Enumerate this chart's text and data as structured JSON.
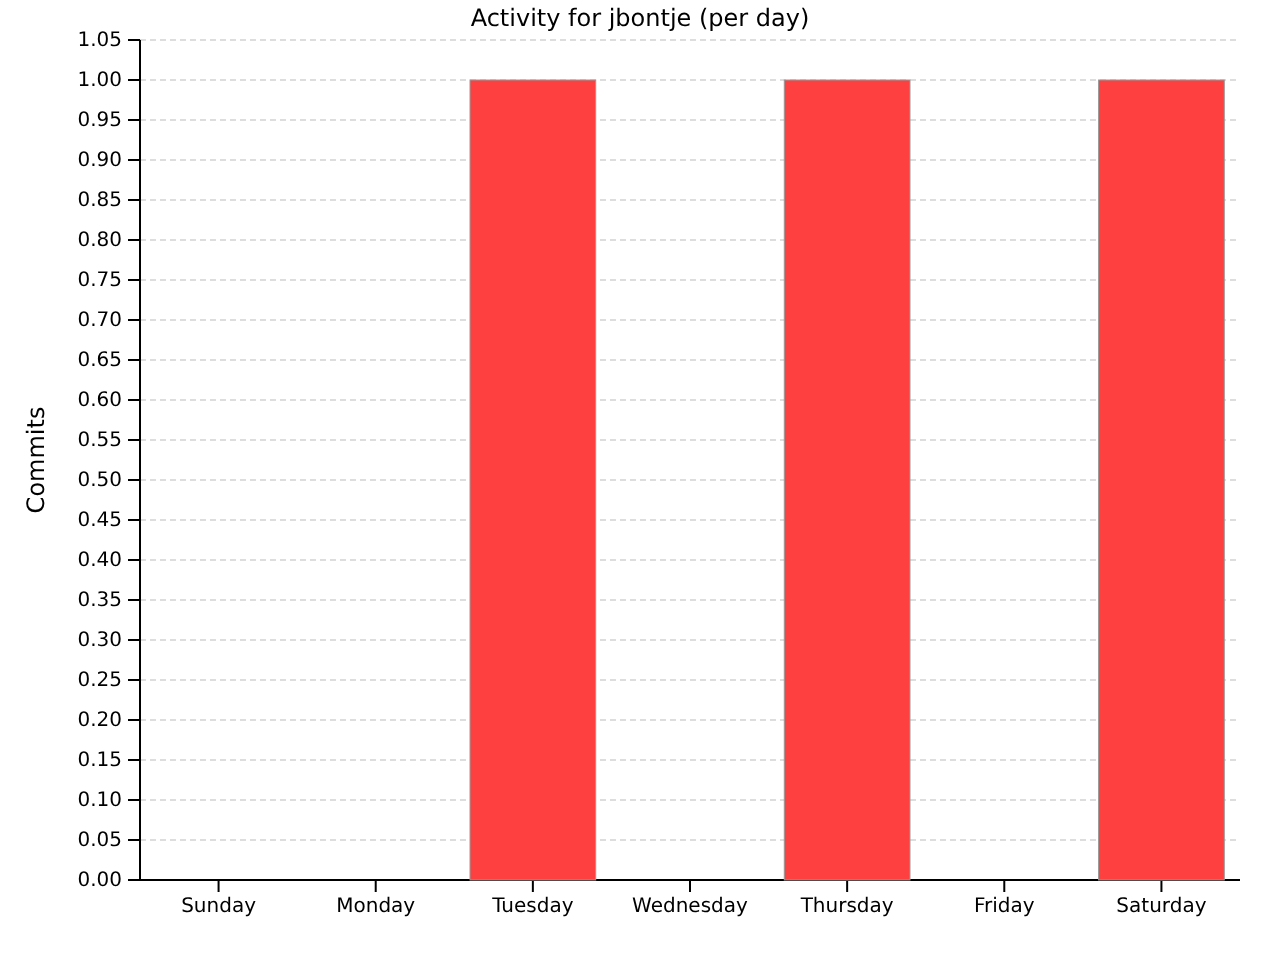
{
  "chart_data": {
    "type": "bar",
    "title": "Activity for jbontje (per day)",
    "ylabel": "Commits",
    "categories": [
      "Sunday",
      "Monday",
      "Tuesday",
      "Wednesday",
      "Thursday",
      "Friday",
      "Saturday"
    ],
    "series": [
      {
        "color": "#ff4040",
        "values": [
          0,
          0,
          1,
          0,
          1,
          0,
          1
        ]
      }
    ],
    "ylim": [
      0,
      1.05
    ],
    "yticks": [
      {
        "value": 0,
        "label": "0.00"
      },
      {
        "value": 0.05,
        "label": "0.05"
      },
      {
        "value": 0.1,
        "label": "0.10"
      },
      {
        "value": 0.15,
        "label": "0.15"
      },
      {
        "value": 0.2,
        "label": "0.20"
      },
      {
        "value": 0.25,
        "label": "0.25"
      },
      {
        "value": 0.3,
        "label": "0.30"
      },
      {
        "value": 0.35,
        "label": "0.35"
      },
      {
        "value": 0.4,
        "label": "0.40"
      },
      {
        "value": 0.45,
        "label": "0.45"
      },
      {
        "value": 0.5,
        "label": "0.50"
      },
      {
        "value": 0.55,
        "label": "0.55"
      },
      {
        "value": 0.6,
        "label": "0.60"
      },
      {
        "value": 0.65,
        "label": "0.65"
      },
      {
        "value": 0.7,
        "label": "0.70"
      },
      {
        "value": 0.75,
        "label": "0.75"
      },
      {
        "value": 0.8,
        "label": "0.80"
      },
      {
        "value": 0.85,
        "label": "0.85"
      },
      {
        "value": 0.9,
        "label": "0.90"
      },
      {
        "value": 0.95,
        "label": "0.95"
      },
      {
        "value": 1,
        "label": "1.00"
      },
      {
        "value": 1.05,
        "label": "1.05"
      }
    ],
    "grid": "y"
  }
}
